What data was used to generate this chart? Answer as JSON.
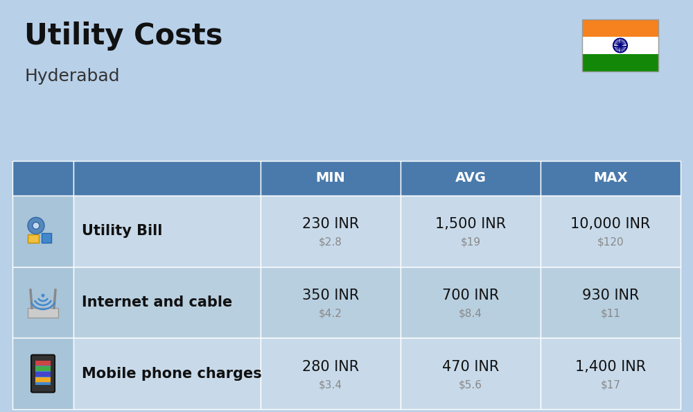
{
  "title": "Utility Costs",
  "subtitle": "Hyderabad",
  "bg_color": "#b8d0e8",
  "header_bg": "#4a7aab",
  "header_text_color": "#ffffff",
  "row_bg_light": "#c8daea",
  "row_bg_dark": "#b8cfe0",
  "icon_col_bg": "#a8c4d8",
  "table_border_color": "#7a9ab8",
  "header_labels": [
    "MIN",
    "AVG",
    "MAX"
  ],
  "rows": [
    {
      "label": "Utility Bill",
      "min_inr": "230 INR",
      "min_usd": "$2.8",
      "avg_inr": "1,500 INR",
      "avg_usd": "$19",
      "max_inr": "10,000 INR",
      "max_usd": "$120"
    },
    {
      "label": "Internet and cable",
      "min_inr": "350 INR",
      "min_usd": "$4.2",
      "avg_inr": "700 INR",
      "avg_usd": "$8.4",
      "max_inr": "930 INR",
      "max_usd": "$11"
    },
    {
      "label": "Mobile phone charges",
      "min_inr": "280 INR",
      "min_usd": "$3.4",
      "avg_inr": "470 INR",
      "avg_usd": "$5.6",
      "max_inr": "1,400 INR",
      "max_usd": "$17"
    }
  ],
  "flag_colors": [
    "#f5821e",
    "#ffffff",
    "#138808"
  ],
  "flag_emblem_color": "#000080",
  "inr_fontsize": 15,
  "usd_fontsize": 11,
  "usd_color": "#888888",
  "label_fontsize": 15,
  "header_fontsize": 14,
  "title_fontsize": 30,
  "subtitle_fontsize": 18,
  "title_color": "#111111",
  "subtitle_color": "#333333",
  "label_color": "#111111"
}
